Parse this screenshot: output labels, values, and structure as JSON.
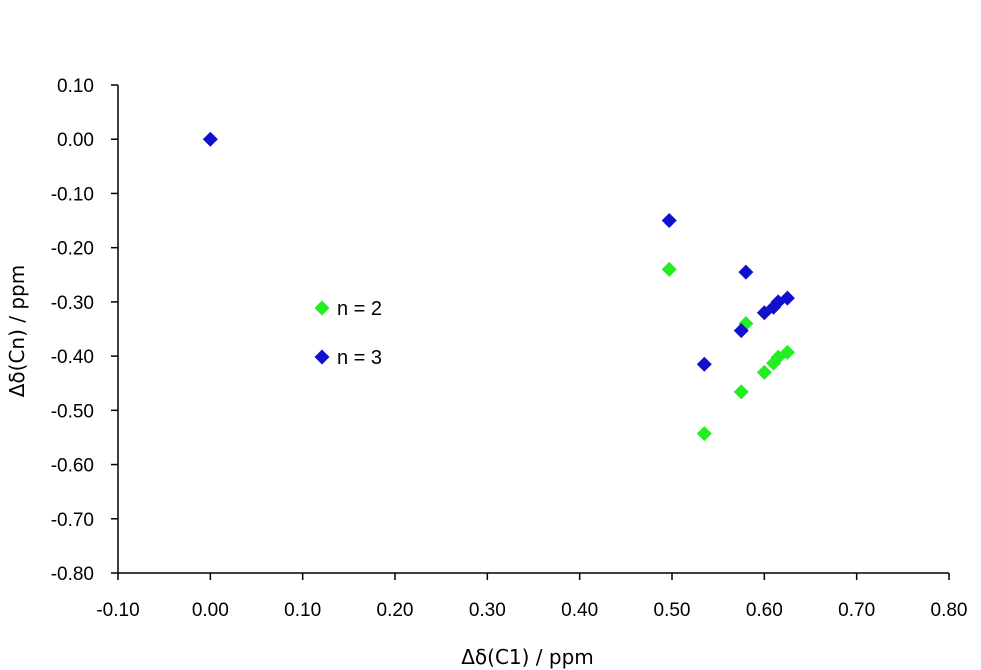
{
  "chart_data": {
    "type": "scatter",
    "title": "",
    "xlabel": "Δδ(C1) / ppm",
    "ylabel": "Δδ(Cn) / ppm",
    "xlim": [
      -0.1,
      0.8
    ],
    "ylim": [
      -0.8,
      0.1
    ],
    "x_ticks": [
      "-0.10",
      "0.00",
      "0.10",
      "0.20",
      "0.30",
      "0.40",
      "0.50",
      "0.60",
      "0.70",
      "0.80"
    ],
    "y_ticks": [
      "0.10",
      "0.00",
      "-0.10",
      "-0.20",
      "-0.30",
      "-0.40",
      "-0.50",
      "-0.60",
      "-0.70",
      "-0.80"
    ],
    "x_tick_values": [
      -0.1,
      0.0,
      0.1,
      0.2,
      0.3,
      0.4,
      0.5,
      0.6,
      0.7,
      0.8
    ],
    "y_tick_values": [
      0.1,
      0.0,
      -0.1,
      -0.2,
      -0.3,
      -0.4,
      -0.5,
      -0.6,
      -0.7,
      -0.8
    ],
    "grid": false,
    "legend_position": "left-middle",
    "series": [
      {
        "name": "n = 2",
        "color": "#22ee22",
        "marker": "diamond",
        "points": [
          {
            "x": 0.497,
            "y": -0.24
          },
          {
            "x": 0.535,
            "y": -0.543
          },
          {
            "x": 0.575,
            "y": -0.466
          },
          {
            "x": 0.58,
            "y": -0.34
          },
          {
            "x": 0.6,
            "y": -0.43
          },
          {
            "x": 0.61,
            "y": -0.413
          },
          {
            "x": 0.615,
            "y": -0.402
          },
          {
            "x": 0.625,
            "y": -0.393
          }
        ]
      },
      {
        "name": "n = 3",
        "color": "#1111cc",
        "marker": "diamond",
        "points": [
          {
            "x": 0.0,
            "y": 0.0
          },
          {
            "x": 0.497,
            "y": -0.15
          },
          {
            "x": 0.535,
            "y": -0.415
          },
          {
            "x": 0.575,
            "y": -0.353
          },
          {
            "x": 0.58,
            "y": -0.245
          },
          {
            "x": 0.6,
            "y": -0.32
          },
          {
            "x": 0.61,
            "y": -0.31
          },
          {
            "x": 0.615,
            "y": -0.3
          },
          {
            "x": 0.625,
            "y": -0.293
          }
        ]
      }
    ]
  }
}
